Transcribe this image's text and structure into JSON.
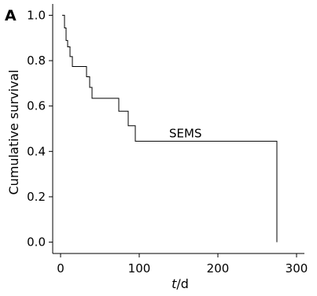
{
  "chart_data": {
    "type": "line",
    "panel_label": "A",
    "xlabel_italic": "t",
    "xlabel_rest": "/d",
    "ylabel": "Cumulative survival",
    "xlim": [
      -10,
      310
    ],
    "ylim": [
      -0.05,
      1.05
    ],
    "x_ticks": [
      0,
      100,
      200,
      300
    ],
    "x_tick_labels": [
      "0",
      "100",
      "200",
      "300"
    ],
    "y_ticks": [
      0.0,
      0.2,
      0.4,
      0.6,
      0.8,
      1.0
    ],
    "y_tick_labels": [
      "0.0",
      "0.2",
      "0.4",
      "0.6",
      "0.8",
      "1.0"
    ],
    "grid": false,
    "series": [
      {
        "name": "SEMS",
        "step": true,
        "x": [
          2,
          5,
          7,
          9,
          12,
          15,
          33,
          37,
          40,
          74,
          86,
          95,
          275
        ],
        "y": [
          1.0,
          0.944,
          0.889,
          0.861,
          0.818,
          0.774,
          0.729,
          0.682,
          0.634,
          0.577,
          0.513,
          0.445,
          0.0
        ]
      }
    ],
    "annotations": [
      {
        "text": "SEMS",
        "x": 150,
        "y": 0.445
      }
    ]
  }
}
